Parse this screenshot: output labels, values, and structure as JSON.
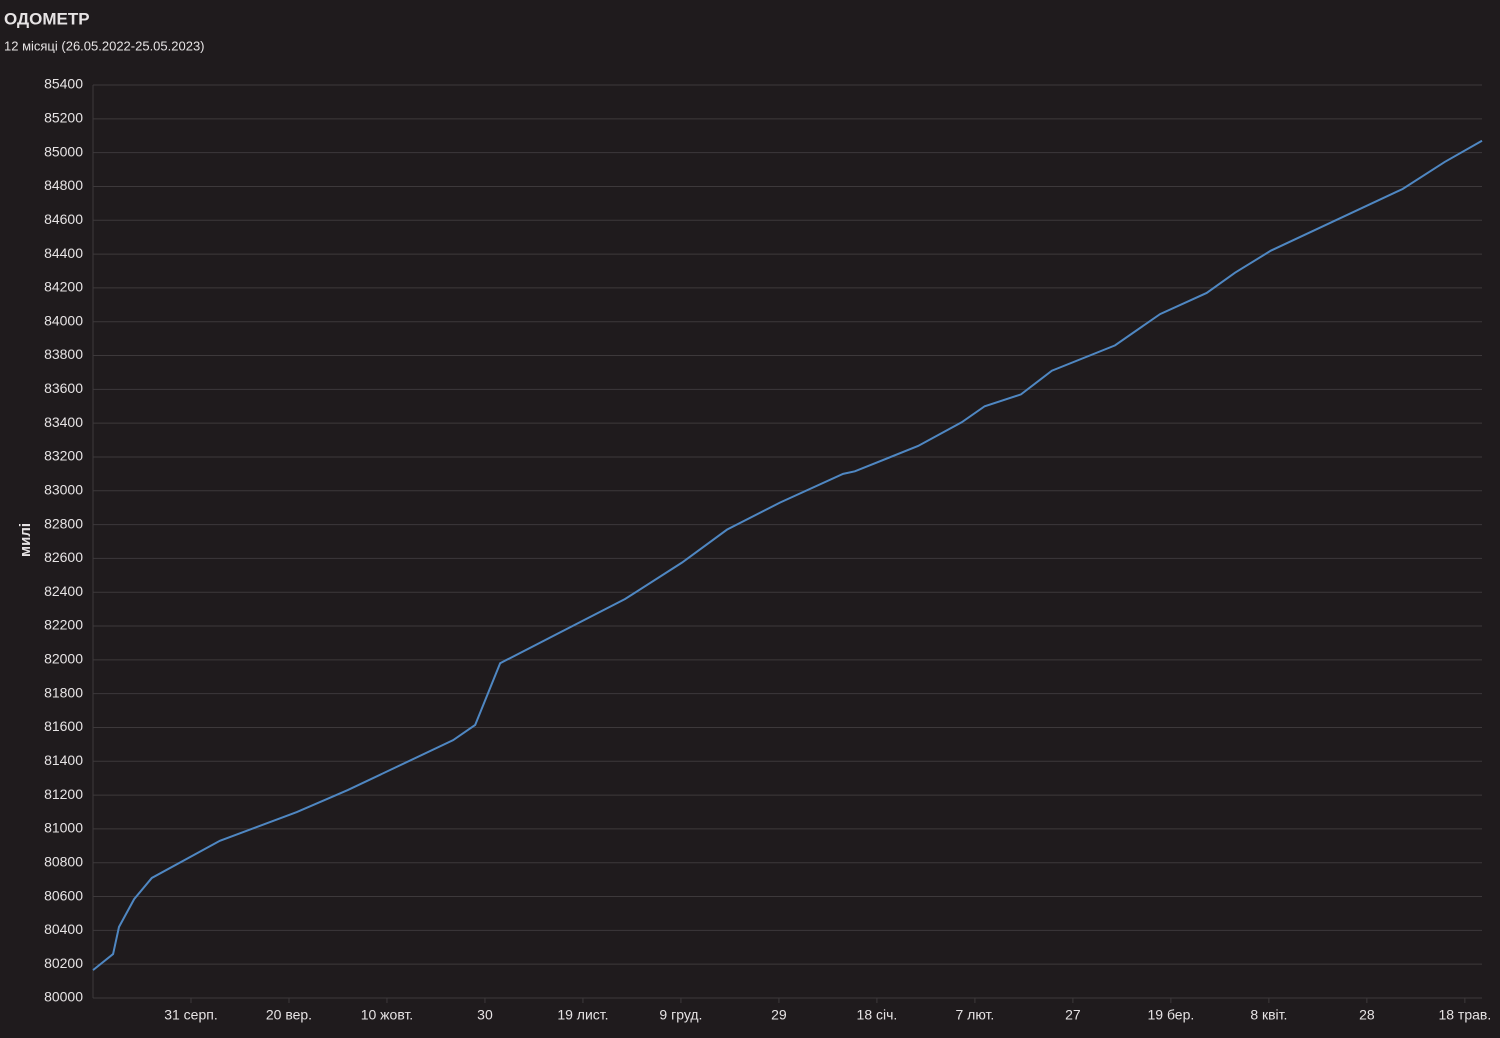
{
  "chart_data": {
    "type": "line",
    "title": "ОДОМЕТР",
    "subtitle": "12 місяці (26.05.2022-25.05.2023)",
    "y_label": "милі",
    "x": [
      0,
      4.1,
      5.3,
      8.4,
      12,
      25.9,
      41.6,
      52,
      73.5,
      78,
      83.1,
      108.6,
      120.2,
      129.4,
      140.2,
      153.1,
      155.5,
      168.4,
      177.3,
      182,
      189.4,
      195.7,
      208.6,
      217.8,
      227.3,
      233.1,
      240.4,
      267.3,
      275.9,
      283.5
    ],
    "series": [
      {
        "name": "милі",
        "color": "#4f87c2",
        "values": [
          80165,
          80260,
          80420,
          80585,
          80710,
          80930,
          81100,
          81230,
          81525,
          81615,
          81980,
          82360,
          82575,
          82770,
          82930,
          83100,
          83115,
          83265,
          83405,
          83500,
          83570,
          83710,
          83860,
          84045,
          84170,
          84290,
          84420,
          84785,
          84945,
          85070
        ]
      }
    ],
    "xlim": [
      0,
      283.5
    ],
    "xticks": [
      {
        "value": 20,
        "label": "31 серп."
      },
      {
        "value": 40,
        "label": "20 вер."
      },
      {
        "value": 60,
        "label": "10 жовт."
      },
      {
        "value": 80,
        "label": "30"
      },
      {
        "value": 100,
        "label": "19 лист."
      },
      {
        "value": 120,
        "label": "9 груд."
      },
      {
        "value": 140,
        "label": "29"
      },
      {
        "value": 160,
        "label": "18 січ."
      },
      {
        "value": 180,
        "label": "7 лют."
      },
      {
        "value": 200,
        "label": "27"
      },
      {
        "value": 220,
        "label": "19 бер."
      },
      {
        "value": 240,
        "label": "8 квіт."
      },
      {
        "value": 260,
        "label": "28"
      },
      {
        "value": 280,
        "label": "18 трав."
      }
    ],
    "ylim": [
      80000,
      85400
    ],
    "yticks": [
      80000,
      80200,
      80400,
      80600,
      80800,
      81000,
      81200,
      81400,
      81600,
      81800,
      82000,
      82200,
      82400,
      82600,
      82800,
      83000,
      83200,
      83400,
      83600,
      83800,
      84000,
      84200,
      84400,
      84600,
      84800,
      85000,
      85200,
      85400
    ],
    "grid": true
  }
}
